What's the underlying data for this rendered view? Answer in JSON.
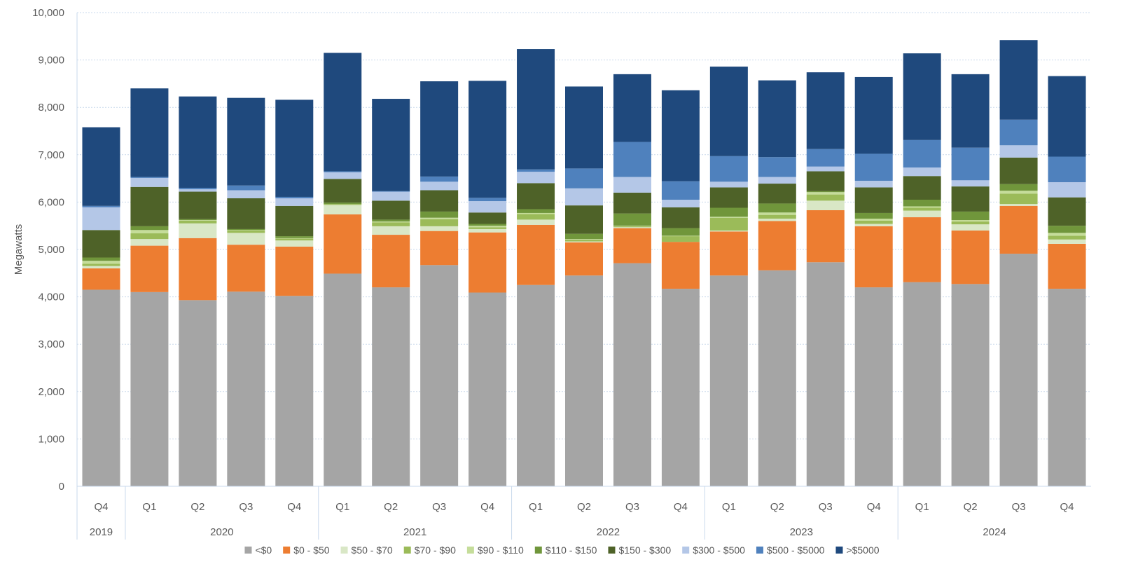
{
  "chart_data": {
    "type": "bar",
    "stacked": true,
    "ylabel": "Megawatts",
    "xlabel": "",
    "ylim": [
      0,
      10000
    ],
    "yticks": [
      0,
      1000,
      2000,
      3000,
      4000,
      5000,
      6000,
      7000,
      8000,
      9000,
      10000
    ],
    "ytick_labels": [
      "0",
      "1,000",
      "2,000",
      "3,000",
      "4,000",
      "5,000",
      "6,000",
      "7,000",
      "8,000",
      "9,000",
      "10,000"
    ],
    "grid": true,
    "legend_position": "bottom",
    "categories": [
      "Q4",
      "Q1",
      "Q2",
      "Q3",
      "Q4",
      "Q1",
      "Q2",
      "Q3",
      "Q4",
      "Q1",
      "Q2",
      "Q3",
      "Q4",
      "Q1",
      "Q2",
      "Q3",
      "Q4",
      "Q1",
      "Q2",
      "Q3",
      "Q4"
    ],
    "year_groups": [
      {
        "label": "2019",
        "start": 0,
        "count": 1
      },
      {
        "label": "2020",
        "start": 1,
        "count": 4
      },
      {
        "label": "2021",
        "start": 5,
        "count": 4
      },
      {
        "label": "2022",
        "start": 9,
        "count": 4
      },
      {
        "label": "2023",
        "start": 13,
        "count": 4
      },
      {
        "label": "2024",
        "start": 17,
        "count": 4
      }
    ],
    "series": [
      {
        "name": "<$0",
        "color": "#a5a5a5",
        "values": [
          4150,
          4100,
          3930,
          4110,
          4020,
          4490,
          4200,
          4670,
          4090,
          4250,
          4450,
          4710,
          4170,
          4450,
          4560,
          4730,
          4200,
          4310,
          4270,
          4910,
          4170
        ]
      },
      {
        "name": "$0 - $50",
        "color": "#ed7d31",
        "values": [
          450,
          980,
          1310,
          990,
          1040,
          1250,
          1110,
          720,
          1270,
          1270,
          700,
          740,
          990,
          930,
          1040,
          1100,
          1290,
          1370,
          1130,
          1010,
          950
        ]
      },
      {
        "name": "$50 - $70",
        "color": "#d9e7c6",
        "values": [
          50,
          140,
          310,
          250,
          130,
          200,
          180,
          100,
          70,
          110,
          20,
          20,
          0,
          20,
          50,
          200,
          50,
          140,
          130,
          40,
          90
        ]
      },
      {
        "name": "$70 - $90",
        "color": "#9bbb59",
        "values": [
          50,
          120,
          60,
          50,
          40,
          20,
          80,
          150,
          40,
          120,
          40,
          20,
          120,
          270,
          80,
          130,
          70,
          60,
          60,
          220,
          80
        ]
      },
      {
        "name": "$90 - $110",
        "color": "#c5dd9a",
        "values": [
          60,
          70,
          10,
          10,
          10,
          0,
          20,
          30,
          30,
          20,
          10,
          10,
          10,
          20,
          50,
          50,
          40,
          30,
          30,
          60,
          60
        ]
      },
      {
        "name": "$110 - $150",
        "color": "#70963b",
        "values": [
          70,
          80,
          20,
          20,
          40,
          30,
          40,
          130,
          40,
          80,
          110,
          260,
          160,
          190,
          190,
          20,
          120,
          140,
          180,
          140,
          150
        ]
      },
      {
        "name": "$150 - $300",
        "color": "#4e6228",
        "values": [
          580,
          830,
          580,
          650,
          640,
          500,
          400,
          450,
          240,
          550,
          600,
          440,
          440,
          430,
          420,
          420,
          540,
          500,
          530,
          560,
          600
        ]
      },
      {
        "name": "$300 - $500",
        "color": "#b4c7e7",
        "values": [
          480,
          190,
          50,
          170,
          160,
          140,
          190,
          180,
          240,
          240,
          360,
          330,
          160,
          120,
          140,
          100,
          140,
          180,
          130,
          260,
          320
        ]
      },
      {
        "name": "$500 - $5000",
        "color": "#4f81bd",
        "values": [
          30,
          20,
          30,
          100,
          30,
          20,
          10,
          110,
          70,
          50,
          420,
          740,
          390,
          540,
          420,
          370,
          570,
          580,
          690,
          540,
          540
        ]
      },
      {
        "name": ">$5000",
        "color": "#1f497d",
        "values": [
          1660,
          1870,
          1930,
          1850,
          2050,
          2500,
          1950,
          2010,
          2470,
          2540,
          1730,
          1430,
          1920,
          1890,
          1620,
          1620,
          1620,
          1830,
          1550,
          1680,
          1700
        ]
      }
    ]
  }
}
